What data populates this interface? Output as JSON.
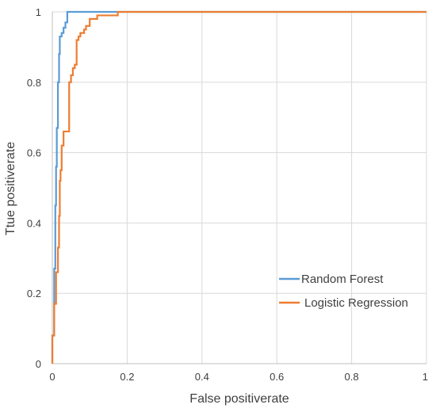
{
  "chart_data": {
    "type": "line",
    "title": "",
    "xlabel": "False positiverate",
    "ylabel": "Ttue positiverate",
    "xlim": [
      0,
      1
    ],
    "ylim": [
      0,
      1
    ],
    "x_ticks": [
      "0",
      "0.2",
      "0.4",
      "0.6",
      "0.8",
      "1"
    ],
    "y_ticks": [
      "0",
      "0.2",
      "0.4",
      "0.6",
      "0.8",
      "1"
    ],
    "x_tick_values": [
      0,
      0.2,
      0.4,
      0.6,
      0.8,
      1
    ],
    "y_tick_values": [
      0,
      0.2,
      0.4,
      0.6,
      0.8,
      1
    ],
    "grid": true,
    "legend_position": "bottom-right",
    "series": [
      {
        "name": "Random Forest",
        "color": "#5b9bd5",
        "points": [
          [
            0,
            0
          ],
          [
            0,
            0.08
          ],
          [
            0.005,
            0.08
          ],
          [
            0.005,
            0.27
          ],
          [
            0.008,
            0.27
          ],
          [
            0.008,
            0.45
          ],
          [
            0.01,
            0.45
          ],
          [
            0.01,
            0.56
          ],
          [
            0.012,
            0.56
          ],
          [
            0.012,
            0.67
          ],
          [
            0.015,
            0.67
          ],
          [
            0.015,
            0.8
          ],
          [
            0.018,
            0.8
          ],
          [
            0.018,
            0.88
          ],
          [
            0.02,
            0.88
          ],
          [
            0.02,
            0.93
          ],
          [
            0.025,
            0.93
          ],
          [
            0.025,
            0.94
          ],
          [
            0.03,
            0.94
          ],
          [
            0.03,
            0.955
          ],
          [
            0.035,
            0.955
          ],
          [
            0.035,
            0.97
          ],
          [
            0.04,
            0.97
          ],
          [
            0.04,
            1.0
          ],
          [
            1.0,
            1.0
          ]
        ]
      },
      {
        "name": "Logistic Regression",
        "color": "#ed7d31",
        "points": [
          [
            0,
            0
          ],
          [
            0,
            0.08
          ],
          [
            0.005,
            0.08
          ],
          [
            0.005,
            0.17
          ],
          [
            0.01,
            0.17
          ],
          [
            0.01,
            0.26
          ],
          [
            0.015,
            0.26
          ],
          [
            0.015,
            0.33
          ],
          [
            0.018,
            0.33
          ],
          [
            0.018,
            0.42
          ],
          [
            0.02,
            0.42
          ],
          [
            0.02,
            0.52
          ],
          [
            0.022,
            0.52
          ],
          [
            0.022,
            0.55
          ],
          [
            0.025,
            0.55
          ],
          [
            0.025,
            0.62
          ],
          [
            0.03,
            0.62
          ],
          [
            0.03,
            0.66
          ],
          [
            0.045,
            0.66
          ],
          [
            0.045,
            0.8
          ],
          [
            0.05,
            0.8
          ],
          [
            0.05,
            0.82
          ],
          [
            0.055,
            0.82
          ],
          [
            0.055,
            0.84
          ],
          [
            0.06,
            0.84
          ],
          [
            0.06,
            0.85
          ],
          [
            0.065,
            0.85
          ],
          [
            0.065,
            0.92
          ],
          [
            0.07,
            0.92
          ],
          [
            0.07,
            0.93
          ],
          [
            0.075,
            0.93
          ],
          [
            0.075,
            0.94
          ],
          [
            0.085,
            0.94
          ],
          [
            0.085,
            0.95
          ],
          [
            0.09,
            0.95
          ],
          [
            0.09,
            0.96
          ],
          [
            0.1,
            0.96
          ],
          [
            0.1,
            0.98
          ],
          [
            0.12,
            0.98
          ],
          [
            0.12,
            0.99
          ],
          [
            0.175,
            0.99
          ],
          [
            0.175,
            1.0
          ],
          [
            1.0,
            1.0
          ]
        ]
      }
    ]
  }
}
